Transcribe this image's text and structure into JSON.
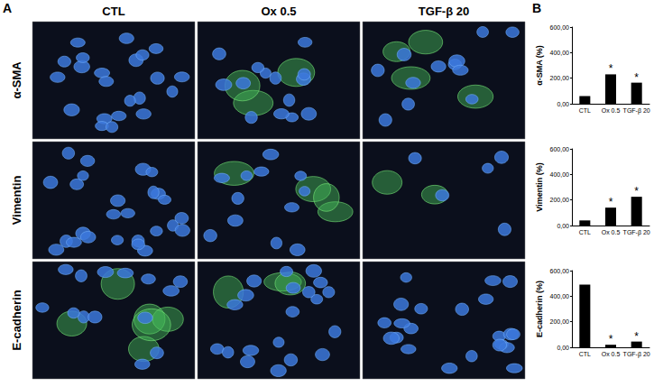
{
  "panel_a": {
    "label": "A",
    "columns": [
      "CTL",
      "Ox 0.5",
      "TGF-β 20"
    ],
    "rows": [
      "α-SMA",
      "Vimentin",
      "E-cadherin"
    ]
  },
  "panel_b_label": "B",
  "chart_data": [
    {
      "type": "bar",
      "ylabel": "α-SMA (%)",
      "categories": [
        "CTL",
        "Ox 0.5",
        "TGF-β 20"
      ],
      "values": [
        60,
        230,
        165
      ],
      "color": "#000000",
      "ylim": [
        0,
        600
      ],
      "yticks": [
        {
          "value": 0,
          "label": "0,00"
        },
        {
          "value": 200,
          "label": "200,00"
        },
        {
          "value": 400,
          "label": "400,00"
        },
        {
          "value": 600,
          "label": "600,00"
        }
      ],
      "annotations": [
        {
          "category": "Ox 0.5",
          "text": "*"
        },
        {
          "category": "TGF-β 20",
          "text": "*"
        }
      ],
      "grid": false
    },
    {
      "type": "bar",
      "ylabel": "Vimentin (%)",
      "categories": [
        "CTL",
        "Ox 0.5",
        "TGF-β 20"
      ],
      "values": [
        40,
        140,
        225
      ],
      "color": "#000000",
      "ylim": [
        0,
        600
      ],
      "yticks": [
        {
          "value": 0,
          "label": "0,00"
        },
        {
          "value": 200,
          "label": "200,00"
        },
        {
          "value": 400,
          "label": "400,00"
        },
        {
          "value": 600,
          "label": "600,00"
        }
      ],
      "annotations": [
        {
          "category": "Ox 0.5",
          "text": "*"
        },
        {
          "category": "TGF-β 20",
          "text": "*"
        }
      ],
      "grid": false
    },
    {
      "type": "bar",
      "ylabel": "E-cadherin (%)",
      "categories": [
        "CTL",
        "Ox 0.5",
        "TGF-β 20"
      ],
      "values": [
        490,
        20,
        45
      ],
      "color": "#000000",
      "ylim": [
        0,
        600
      ],
      "yticks": [
        {
          "value": 0,
          "label": "0,00"
        },
        {
          "value": 200,
          "label": "200,00"
        },
        {
          "value": 400,
          "label": "400,00"
        },
        {
          "value": 600,
          "label": "600,00"
        }
      ],
      "annotations": [
        {
          "category": "Ox 0.5",
          "text": "*"
        },
        {
          "category": "TGF-β 20",
          "text": "*"
        }
      ],
      "grid": false
    }
  ]
}
